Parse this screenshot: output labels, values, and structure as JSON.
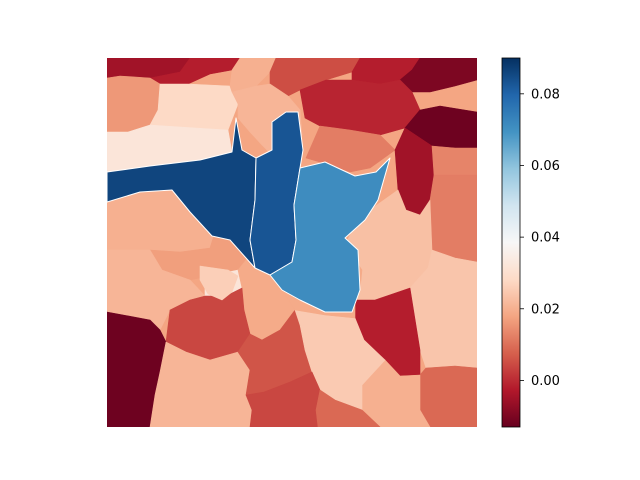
{
  "chart_data": {
    "type": "heatmap",
    "title": "",
    "xlabel": "",
    "ylabel": "",
    "axes_visible": false,
    "colormap": "RdBu",
    "colorbar": {
      "range": [
        -0.013,
        0.09
      ],
      "ticks": [
        {
          "value": 0.0,
          "label": "0.00"
        },
        {
          "value": 0.02,
          "label": "0.02"
        },
        {
          "value": 0.04,
          "label": "0.04"
        },
        {
          "value": 0.06,
          "label": "0.06"
        },
        {
          "value": 0.08,
          "label": "0.08"
        }
      ],
      "placement": "right"
    },
    "regions": [
      {
        "id": "r01",
        "value": 0.086
      },
      {
        "id": "r02",
        "value": 0.083
      },
      {
        "id": "r03",
        "value": 0.071
      },
      {
        "id": "r04",
        "value": 0.018
      },
      {
        "id": "r05",
        "value": 0.026
      },
      {
        "id": "r06",
        "value": 0.021
      },
      {
        "id": "r07",
        "value": 0.005
      },
      {
        "id": "r08",
        "value": -0.002
      },
      {
        "id": "r09",
        "value": -0.01
      },
      {
        "id": "r10",
        "value": 0.013
      },
      {
        "id": "r11",
        "value": 0.028
      },
      {
        "id": "r12",
        "value": 0.02
      },
      {
        "id": "r13",
        "value": 0.032
      },
      {
        "id": "r14",
        "value": 0.017
      },
      {
        "id": "r15",
        "value": 0.019
      },
      {
        "id": "r16",
        "value": -0.001
      },
      {
        "id": "r17",
        "value": 0.024
      },
      {
        "id": "r18",
        "value": 0.012
      },
      {
        "id": "r19",
        "value": 0.025
      },
      {
        "id": "r20",
        "value": 0.019
      },
      {
        "id": "r21",
        "value": -0.002
      },
      {
        "id": "r22",
        "value": 0.023
      },
      {
        "id": "r23",
        "value": 0.012
      },
      {
        "id": "r24",
        "value": -0.012
      },
      {
        "id": "r25",
        "value": 0.016
      },
      {
        "id": "r26",
        "value": -0.005
      },
      {
        "id": "r27",
        "value": 0.004
      },
      {
        "id": "r28",
        "value": 0.02
      },
      {
        "id": "r29",
        "value": 0.006
      },
      {
        "id": "r30",
        "value": 0.021
      },
      {
        "id": "r31",
        "value": 0.009
      }
    ]
  }
}
